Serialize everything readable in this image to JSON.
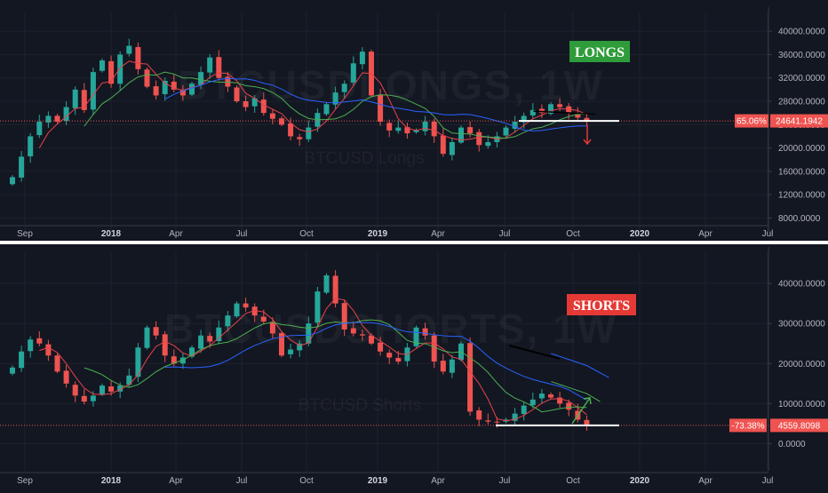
{
  "colors": {
    "background": "#131722",
    "grid": "#1e222d",
    "up": "#26a69a",
    "down": "#ef5350",
    "candle_body": "#ef5350",
    "ma_fast": "#e9424b",
    "ma_mid": "#4caf50",
    "ma_slow": "#2962ff",
    "divider": "#ffffff",
    "longs_badge": "#2e9c3a",
    "shorts_badge": "#e53935",
    "arrow_down": "#e53935",
    "arrow_up": "#4caf50"
  },
  "time_axis": {
    "labels": [
      "Sep",
      "2018",
      "Apr",
      "Jul",
      "Oct",
      "2019",
      "Apr",
      "Jul",
      "Oct",
      "2020",
      "Apr",
      "Jul"
    ],
    "year_labels": [
      "2018",
      "2019",
      "2020"
    ]
  },
  "chart_data": [
    {
      "type": "candlestick",
      "symbol": "BTCUSDLONGS",
      "interval": "1W",
      "watermark": "BTCUSDLONGS, 1W",
      "subtitle": "BTCUSD Longs",
      "badge": "LONGS",
      "ylim": [
        7000,
        42000
      ],
      "ticks": [
        "40000.0000",
        "36000.0000",
        "32000.0000",
        "28000.0000",
        "24000.0000",
        "20000.0000",
        "16000.0000",
        "12000.0000",
        "8000.0000"
      ],
      "tick_values": [
        40000,
        36000,
        32000,
        28000,
        24000,
        20000,
        16000,
        12000,
        8000
      ],
      "last_price_label": "24641.1942",
      "last_change_label": "65.06%",
      "last_price": 24641.1942,
      "support_level": 24641,
      "close_path": [
        15000,
        18500,
        22000,
        24500,
        25500,
        24500,
        27000,
        30000,
        26500,
        33000,
        35000,
        31000,
        36000,
        37500,
        33500,
        30500,
        29000,
        31500,
        30000,
        29000,
        31000,
        33000,
        35500,
        32000,
        30500,
        28000,
        27000,
        28500,
        26000,
        25000,
        24000,
        22000,
        21500,
        23500,
        26000,
        27500,
        29500,
        31000,
        34500,
        36500,
        29000,
        24500,
        23000,
        23500,
        22500,
        23000,
        24500,
        22000,
        19000,
        21000,
        23500,
        22500,
        20500,
        21000,
        22000,
        23500,
        24500,
        25500,
        26500,
        26000,
        27500,
        27000,
        26000,
        25200,
        24641
      ]
    },
    {
      "type": "candlestick",
      "symbol": "BTCUSDSHORTS",
      "interval": "1W",
      "watermark": "BTCUSDSHORTS, 1W",
      "subtitle": "BTCUSD Shorts",
      "badge": "SHORTS",
      "ylim": [
        -5000,
        46000
      ],
      "ticks": [
        "40000.0000",
        "30000.0000",
        "20000.0000",
        "10000.0000",
        "0.0000"
      ],
      "tick_values": [
        40000,
        30000,
        20000,
        10000,
        0
      ],
      "last_price_label": "4559.8098",
      "last_change_label": "-73.38%",
      "last_price": 4559.8098,
      "support_level": 4560,
      "close_path": [
        19000,
        23000,
        26000,
        25000,
        22000,
        18000,
        15000,
        12000,
        10500,
        12000,
        14500,
        13000,
        14500,
        17000,
        24000,
        29000,
        27000,
        22000,
        20000,
        21500,
        24000,
        27000,
        25500,
        29000,
        32000,
        35000,
        34000,
        32000,
        30500,
        27500,
        22000,
        23500,
        25000,
        30000,
        38000,
        42000,
        35000,
        28500,
        27500,
        27000,
        25000,
        23000,
        21500,
        20500,
        24000,
        29000,
        27000,
        20500,
        18000,
        21000,
        25000,
        8000,
        6000,
        5500,
        5300,
        6000,
        7500,
        9500,
        11000,
        12500,
        11500,
        10000,
        8500,
        6000,
        4560
      ]
    }
  ]
}
